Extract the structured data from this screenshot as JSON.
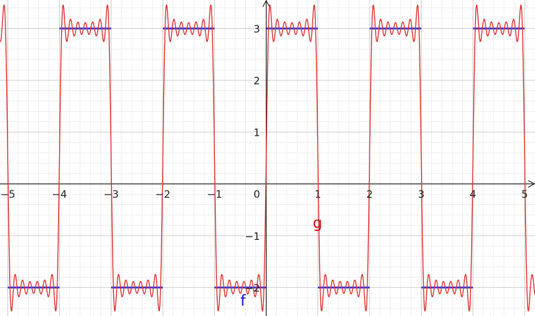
{
  "chart_data": {
    "type": "line",
    "title": "",
    "xlabel": "",
    "ylabel": "",
    "xlim": [
      -5.15,
      5.2
    ],
    "ylim": [
      -2.55,
      3.55
    ],
    "grid": true,
    "x_ticks": [
      {
        "value": -5,
        "label": "−5"
      },
      {
        "value": -4,
        "label": "−4"
      },
      {
        "value": -3,
        "label": "−3"
      },
      {
        "value": -2,
        "label": "−2"
      },
      {
        "value": -1,
        "label": "−1"
      },
      {
        "value": 1,
        "label": "1"
      },
      {
        "value": 2,
        "label": "2"
      },
      {
        "value": 3,
        "label": "3"
      },
      {
        "value": 4,
        "label": "4"
      },
      {
        "value": 5,
        "label": "5"
      }
    ],
    "y_ticks": [
      {
        "value": 3,
        "label": "3"
      },
      {
        "value": 2,
        "label": "2"
      },
      {
        "value": 1,
        "label": "1"
      },
      {
        "value": -1,
        "label": "−1"
      },
      {
        "value": -2,
        "label": "−2"
      }
    ],
    "origin_label": "0",
    "series": [
      {
        "name": "f",
        "kind": "piecewise constant (square wave)",
        "color": "#1010cc",
        "segments": [
          {
            "x": [
              -5,
              -4
            ],
            "y": -2
          },
          {
            "x": [
              -4,
              -3
            ],
            "y": 3
          },
          {
            "x": [
              -3,
              -2
            ],
            "y": -2
          },
          {
            "x": [
              -2,
              -1
            ],
            "y": 3
          },
          {
            "x": [
              -1,
              0
            ],
            "y": -2
          },
          {
            "x": [
              0,
              1
            ],
            "y": 3
          },
          {
            "x": [
              1,
              2
            ],
            "y": -2
          },
          {
            "x": [
              2,
              3
            ],
            "y": 3
          },
          {
            "x": [
              3,
              4
            ],
            "y": -2
          },
          {
            "x": [
              4,
              5
            ],
            "y": 3
          }
        ]
      },
      {
        "name": "g",
        "kind": "partial Fourier sum of f",
        "color": "#dd3333",
        "mean": 0.5,
        "amplitude": 2.5,
        "period": 2,
        "odd_harmonics": [
          1,
          3,
          5,
          7,
          9,
          11,
          13
        ]
      }
    ],
    "labels": {
      "f": {
        "text": "f",
        "x": -0.5,
        "y": -2.35
      },
      "g": {
        "text": "g",
        "x": 0.9,
        "y": -0.85
      }
    }
  }
}
